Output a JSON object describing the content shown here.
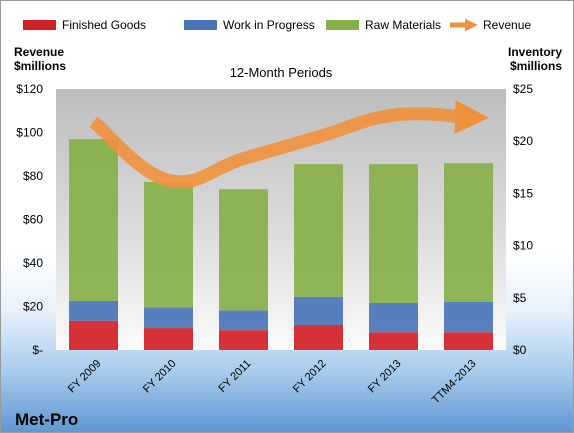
{
  "chart_data": {
    "type": "bar",
    "title": "12-Month Periods",
    "company": "Met-Pro",
    "categories": [
      "FY 2009",
      "FY 2010",
      "FY 2011",
      "FY 2012",
      "FY 2013",
      "TTM4-2013"
    ],
    "left_axis": {
      "label": [
        "Revenue",
        "$millions"
      ],
      "ticks": [
        "$-",
        "$20",
        "$40",
        "$60",
        "$80",
        "$100",
        "$120"
      ],
      "ylim": [
        0,
        120
      ]
    },
    "right_axis": {
      "label": [
        "Inventory",
        "$millions"
      ],
      "ticks": [
        "$0",
        "$5",
        "$10",
        "$15",
        "$20",
        "$25"
      ],
      "ylim": [
        0,
        25
      ]
    },
    "legend_position": "top",
    "grid": false,
    "series": [
      {
        "name": "Finished Goods",
        "type": "stacked-bar",
        "axis": "right",
        "color": "#d11f25",
        "values": [
          2.8,
          2.1,
          1.9,
          2.4,
          1.7,
          1.7
        ]
      },
      {
        "name": "Work in Progress",
        "type": "stacked-bar",
        "axis": "right",
        "color": "#4a74b8",
        "values": [
          1.9,
          2.0,
          1.9,
          2.7,
          2.8,
          2.9
        ]
      },
      {
        "name": "Raw Materials",
        "type": "stacked-bar",
        "axis": "right",
        "color": "#88b04a",
        "values": [
          15.5,
          12.0,
          11.6,
          12.7,
          13.3,
          13.3
        ]
      },
      {
        "name": "Revenue",
        "type": "line",
        "axis": "left",
        "color": "#f0913c",
        "values": [
          105,
          78,
          88,
          98,
          108,
          107
        ]
      }
    ]
  }
}
